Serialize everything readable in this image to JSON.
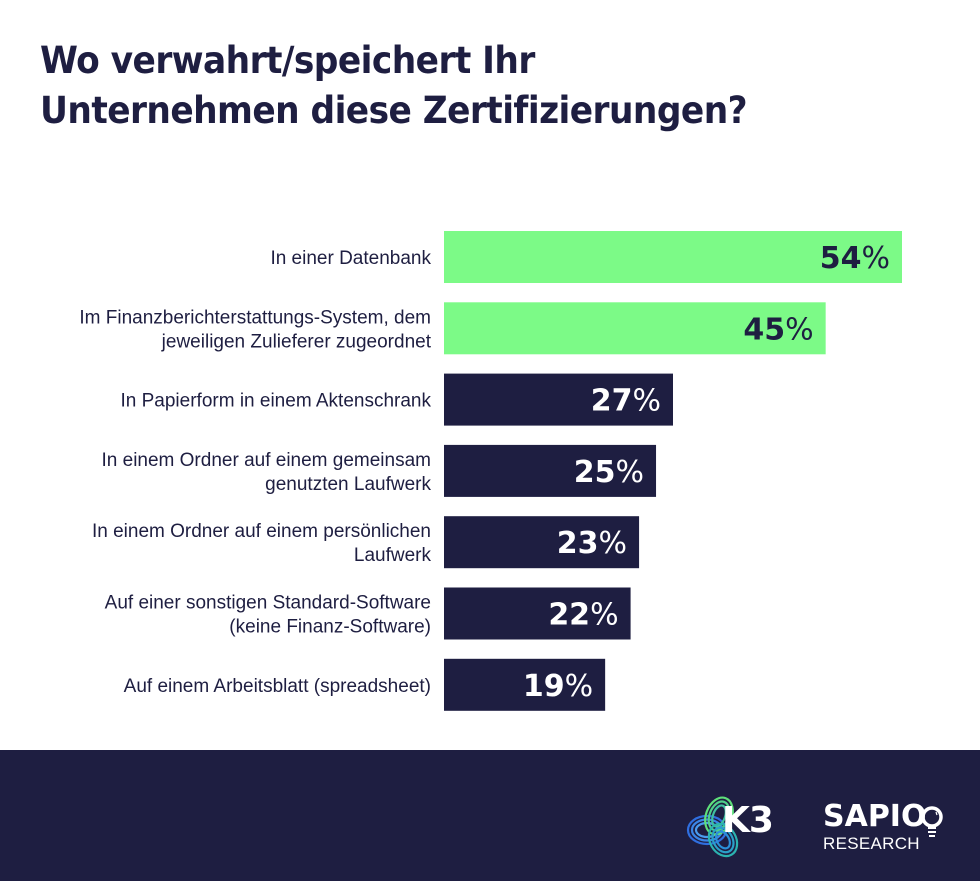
{
  "colors": {
    "navy": "#1e1e41",
    "green": "#7cfa87",
    "white": "#ffffff"
  },
  "title_lines": [
    "Wo verwahrt/speichert Ihr",
    "Unternehmen diese Zertifizierungen?"
  ],
  "chart_data": {
    "type": "bar",
    "orientation": "horizontal",
    "title": "Wo verwahrt/speichert Ihr Unternehmen diese Zertifizierungen?",
    "xlabel": "",
    "ylabel": "",
    "unit": "%",
    "xlim": [
      0,
      54
    ],
    "grid": false,
    "categories": [
      [
        "In einer Datenbank"
      ],
      [
        "Im Finanzberichterstattungs-System, dem",
        "jeweiligen Zulieferer zugeordnet"
      ],
      [
        "In Papierform in einem Aktenschrank"
      ],
      [
        "In einem Ordner auf einem gemeinsam",
        "genutzten Laufwerk"
      ],
      [
        "In einem Ordner auf einem persönlichen",
        "Laufwerk"
      ],
      [
        "Auf einer sonstigen Standard-Software",
        "(keine Finanz-Software)"
      ],
      [
        "Auf einem Arbeitsblatt (spreadsheet)"
      ]
    ],
    "values": [
      54,
      45,
      27,
      25,
      23,
      22,
      19
    ],
    "highlight": [
      true,
      true,
      false,
      false,
      false,
      false,
      false
    ],
    "data_labels": [
      "54",
      "45",
      "27",
      "25",
      "23",
      "22",
      "19"
    ],
    "percent_sign": "%"
  },
  "footer": {
    "logos": [
      {
        "name": "K3",
        "text": "K3"
      },
      {
        "name": "Sapio Research",
        "text": "SAPIO",
        "subtext": "RESEARCH"
      }
    ]
  }
}
